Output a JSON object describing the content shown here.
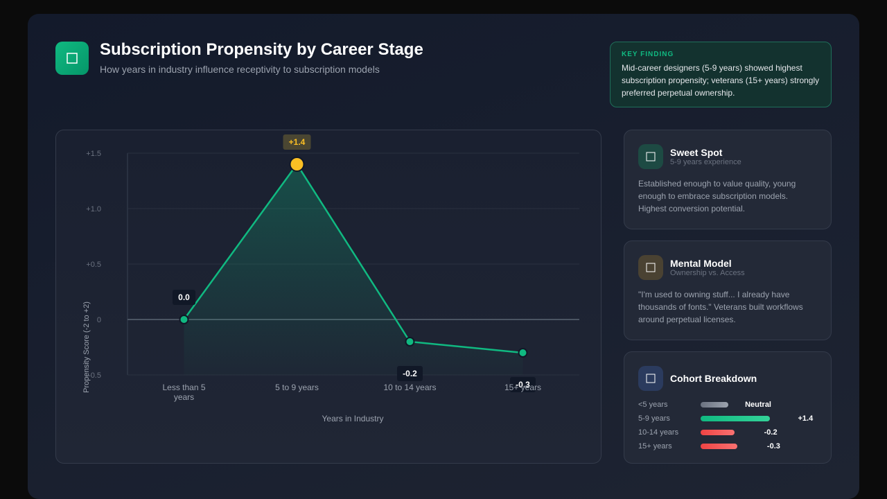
{
  "header": {
    "title": "Subscription Propensity by Career Stage",
    "subtitle": "How years in industry influence receptivity to subscription models"
  },
  "key_finding": {
    "label": "KEY FINDING",
    "text": "Mid-career designers (5-9 years) showed highest subscription propensity; veterans (15+ years) strongly preferred perpetual ownership."
  },
  "chart_data": {
    "type": "line",
    "categories": [
      "Less than 5 years",
      "5 to 9 years",
      "10 to 14 years",
      "15+ years"
    ],
    "values": [
      0,
      1.4,
      -0.2,
      -0.3
    ],
    "value_labels": [
      "0.0",
      "+1.4",
      "-0.2",
      "-0.3"
    ],
    "color": "#10b981",
    "point_colors": [
      "#10b981",
      "#fbbf24",
      "#10b981",
      "#10b981"
    ],
    "ylim": [
      -0.5,
      1.5
    ],
    "yticks": [
      {
        "value": 1.5,
        "label": "+1.5"
      },
      {
        "value": 1,
        "label": "+1.0"
      },
      {
        "value": 0.5,
        "label": "+0.5"
      },
      0,
      {
        "value": -0.5,
        "label": "-0.5"
      }
    ],
    "ylabel": "Propensity Score (-2 to +2)",
    "xlabel": "Years in Industry",
    "grid": true
  },
  "cards": [
    {
      "title": "Sweet Spot",
      "subtitle": "5-9 years experience",
      "text": "Established enough to value quality, young enough to embrace subscription models. Highest conversion potential."
    },
    {
      "title": "Mental Model",
      "subtitle": "Ownership vs. Access",
      "text": "\"I'm used to owning stuff... I already have thousands of fonts.\" Veterans built workflows around perpetual licenses."
    }
  ],
  "cohort": {
    "title": "Cohort Breakdown",
    "rows": [
      {
        "label": "<5 years",
        "value": 0,
        "value_label": "Neutral"
      },
      {
        "label": "5-9 years",
        "value": 1.4,
        "value_label": "+1.4"
      },
      {
        "label": "10-14 years",
        "value": -0.2,
        "value_label": "-0.2"
      },
      {
        "label": "15+ years",
        "value": -0.3,
        "value_label": "-0.3"
      }
    ]
  }
}
